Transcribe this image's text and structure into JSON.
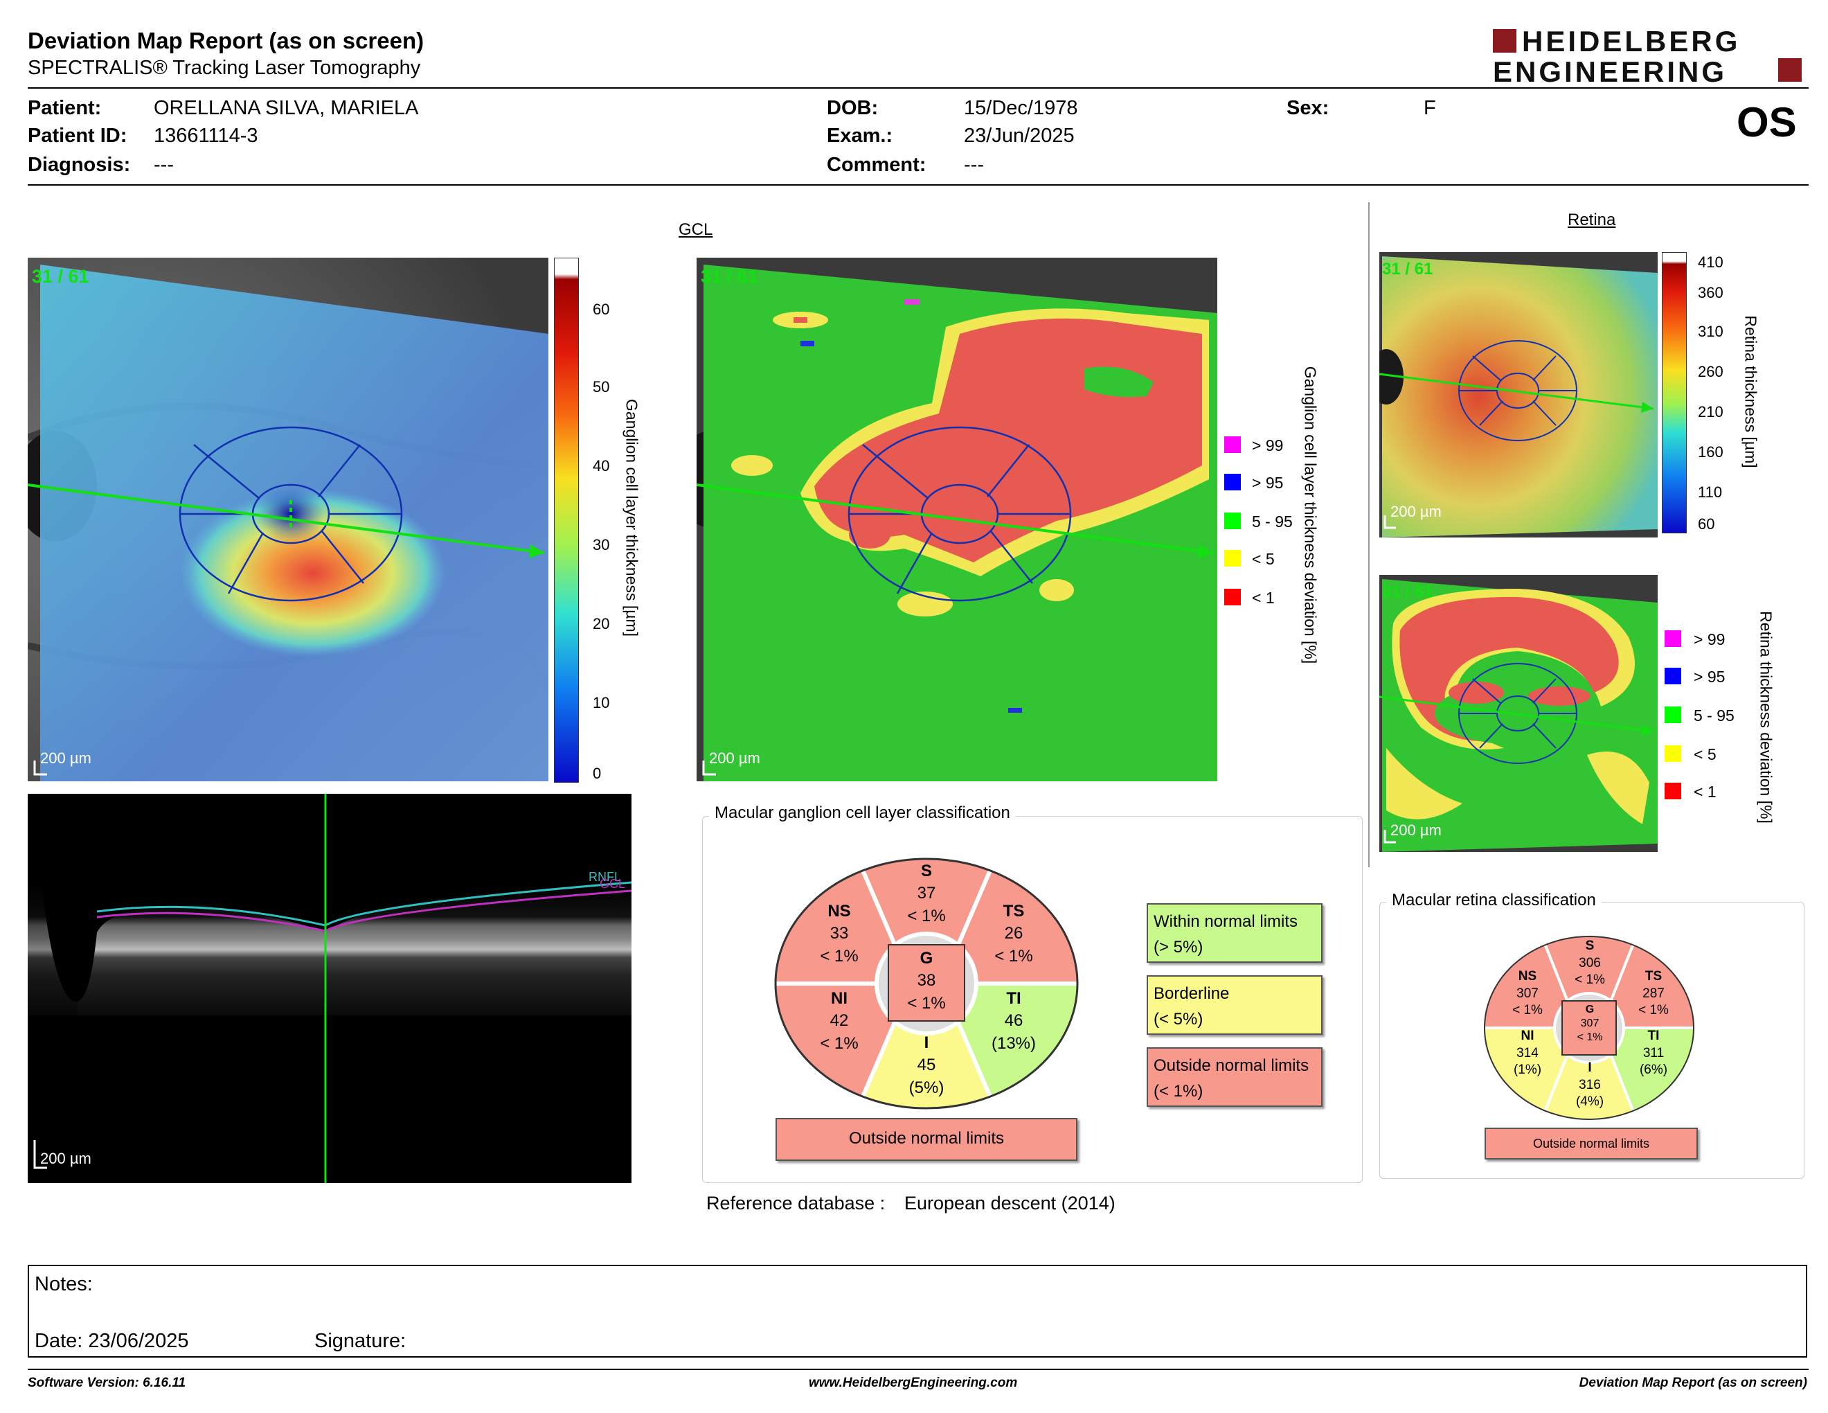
{
  "report": {
    "title": "Deviation Map Report (as on screen)",
    "subtitle": "SPECTRALIS® Tracking Laser Tomography",
    "logo_line1": "HEIDELBERG",
    "logo_line2": "ENGINEERING",
    "eye": "OS"
  },
  "patient": {
    "name_label": "Patient:",
    "name": "ORELLANA SILVA, MARIELA",
    "id_label": "Patient ID:",
    "id": "13661114-3",
    "diagnosis_label": "Diagnosis:",
    "diagnosis": "---",
    "dob_label": "DOB:",
    "dob": "15/Dec/1978",
    "exam_label": "Exam.:",
    "exam": "23/Jun/2025",
    "comment_label": "Comment:",
    "comment": "---",
    "sex_label": "Sex:",
    "sex": "F"
  },
  "gcl": {
    "section_title": "GCL",
    "frame_counter": "31 / 61",
    "scale_label": "200 µm",
    "thickness_axis_label": "Ganglion cell layer thickness [µm]",
    "thickness_ticks": [
      "60",
      "50",
      "40",
      "30",
      "20",
      "10",
      "0"
    ],
    "deviation_axis_label": "Ganglion cell layer thickness deviation [%]",
    "deviation_legend": [
      {
        "label": "> 99",
        "color": "#ff00ff"
      },
      {
        "label": "> 95",
        "color": "#0000ff"
      },
      {
        "label": "5 - 95",
        "color": "#00ff00"
      },
      {
        "label": "< 5",
        "color": "#ffff00"
      },
      {
        "label": "< 1",
        "color": "#ff0000"
      }
    ],
    "bscan_scale_label": "200 µm",
    "bscan_layer_labels": [
      "RNFL",
      "GCL"
    ],
    "classification": {
      "group_title": "Macular ganglion cell layer classification",
      "sectors": [
        {
          "name": "S",
          "value": "37",
          "pct": "< 1%",
          "color": "#f7998c"
        },
        {
          "name": "NS",
          "value": "33",
          "pct": "< 1%",
          "color": "#f7998c"
        },
        {
          "name": "TS",
          "value": "26",
          "pct": "< 1%",
          "color": "#f7998c"
        },
        {
          "name": "NI",
          "value": "42",
          "pct": "< 1%",
          "color": "#f7998c"
        },
        {
          "name": "TI",
          "value": "46",
          "pct": "(13%)",
          "color": "#c8f98c"
        },
        {
          "name": "I",
          "value": "45",
          "pct": "(5%)",
          "color": "#fbf98c"
        },
        {
          "name": "G",
          "value": "38",
          "pct": "< 1%",
          "color": "#f7998c"
        }
      ],
      "result": "Outside normal limits",
      "legend": [
        {
          "line1": "Within normal limits",
          "line2": "(> 5%)",
          "color": "#c8f98c"
        },
        {
          "line1": "Borderline",
          "line2": "(< 5%)",
          "color": "#fbf98c"
        },
        {
          "line1": "Outside normal limits",
          "line2": "(< 1%)",
          "color": "#f7998c"
        }
      ],
      "reference_label": "Reference database :",
      "reference_value": "European descent (2014)"
    }
  },
  "retina": {
    "section_title": "Retina",
    "frame_counter": "31 / 61",
    "scale_label": "200 µm",
    "thickness_axis_label": "Retina thickness [µm]",
    "thickness_ticks": [
      "410",
      "360",
      "310",
      "260",
      "210",
      "160",
      "110",
      "60"
    ],
    "deviation_axis_label": "Retina thickness deviation [%]",
    "deviation_legend": [
      {
        "label": "> 99",
        "color": "#ff00ff"
      },
      {
        "label": "> 95",
        "color": "#0000ff"
      },
      {
        "label": "5 - 95",
        "color": "#00ff00"
      },
      {
        "label": "< 5",
        "color": "#ffff00"
      },
      {
        "label": "< 1",
        "color": "#ff0000"
      }
    ],
    "classification": {
      "group_title": "Macular retina classification",
      "sectors": [
        {
          "name": "S",
          "value": "306",
          "pct": "< 1%",
          "color": "#f7998c"
        },
        {
          "name": "NS",
          "value": "307",
          "pct": "< 1%",
          "color": "#f7998c"
        },
        {
          "name": "TS",
          "value": "287",
          "pct": "< 1%",
          "color": "#f7998c"
        },
        {
          "name": "NI",
          "value": "314",
          "pct": "(1%)",
          "color": "#fbf98c"
        },
        {
          "name": "TI",
          "value": "311",
          "pct": "(6%)",
          "color": "#c8f98c"
        },
        {
          "name": "I",
          "value": "316",
          "pct": "(4%)",
          "color": "#fbf98c"
        },
        {
          "name": "G",
          "value": "307",
          "pct": "< 1%",
          "color": "#f7998c"
        }
      ],
      "result": "Outside normal limits"
    }
  },
  "notes": {
    "notes_label": "Notes:",
    "date_label": "Date: 23/06/2025",
    "signature_label": "Signature:"
  },
  "footer": {
    "software": "Software Version: 6.16.11",
    "website": "www.HeidelbergEngineering.com",
    "report_name": "Deviation Map Report (as on screen)"
  }
}
